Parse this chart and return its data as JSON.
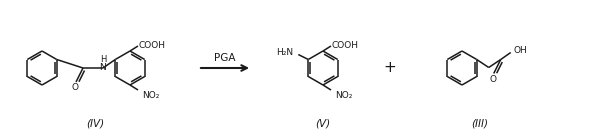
{
  "background_color": "#ffffff",
  "label_IV": "(IV)",
  "label_V": "(V)",
  "label_III": "(III)",
  "label_PGA": "PGA",
  "label_plus": "+",
  "figsize": [
    6.14,
    1.36
  ],
  "dpi": 100,
  "text_color": "#1a1a1a",
  "line_color": "#1a1a1a",
  "line_width": 1.1,
  "font_size_labels": 7.5,
  "font_size_groups": 6.5
}
